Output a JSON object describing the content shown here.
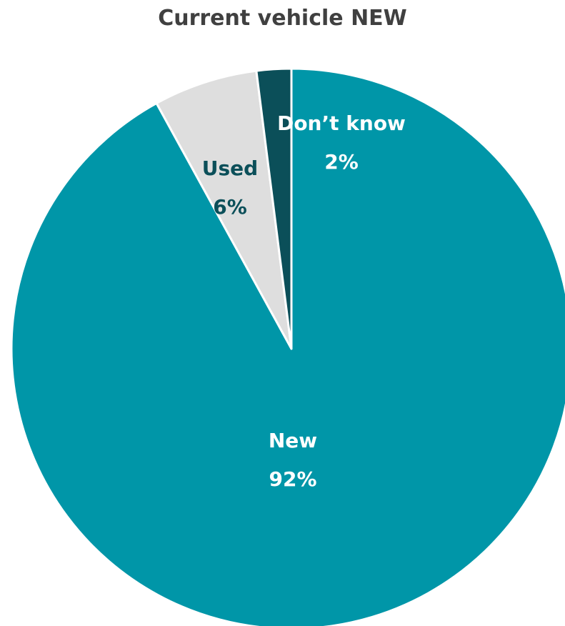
{
  "chart_data": {
    "type": "pie",
    "title": "Current vehicle NEW",
    "slices": [
      {
        "name": "New",
        "value": 92,
        "percent_label": "92%",
        "color": "#0096A8",
        "label_color": "#ffffff"
      },
      {
        "name": "Used",
        "value": 6,
        "percent_label": "6%",
        "color": "#DEDEDE",
        "label_color": "#0B4F59"
      },
      {
        "name": "Don’t know",
        "value": 2,
        "percent_label": "2%",
        "color": "#0B4F59",
        "label_color": "#ffffff"
      }
    ],
    "start": "12 o'clock",
    "direction": "clockwise",
    "legend": "none"
  }
}
